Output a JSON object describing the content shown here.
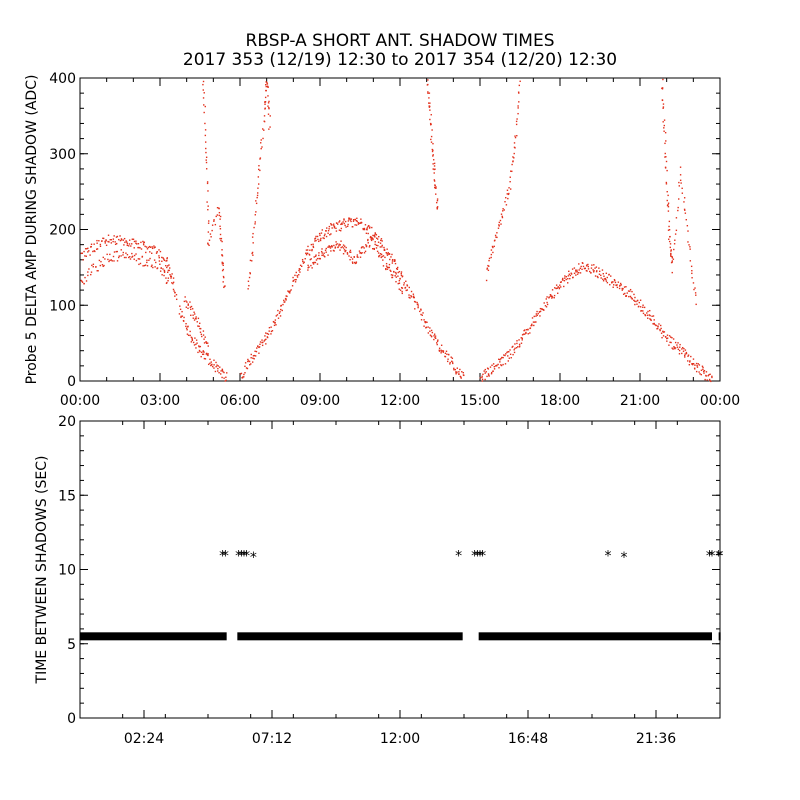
{
  "title": "RBSP-A SHORT ANT. SHADOW TIMES",
  "subtitle": "2017 353 (12/19) 12:30 to 2017 354 (12/20) 12:30",
  "colors": {
    "amp_points": "#e2301c",
    "interval_points": "#000000",
    "axes": "#000000"
  },
  "chart_data": [
    {
      "type": "scatter",
      "ylabel": "Probe 5 DELTA AMP DURING SHADOW (ADC)",
      "xlabel": "",
      "xlim": [
        0,
        24
      ],
      "ylim": [
        0,
        400
      ],
      "x_ticks": [
        0,
        3,
        6,
        9,
        12,
        15,
        18,
        21,
        24
      ],
      "x_tick_labels": [
        "00:00",
        "03:00",
        "06:00",
        "09:00",
        "12:00",
        "15:00",
        "18:00",
        "21:00",
        "00:00"
      ],
      "y_ticks": [
        0,
        100,
        200,
        300,
        400
      ],
      "y_tick_labels": [
        "0",
        "100",
        "200",
        "300",
        "400"
      ],
      "series": [
        {
          "x": [
            0.0,
            0.4,
            0.8,
            1.2,
            1.6,
            2.0,
            2.4,
            2.8,
            3.2,
            3.4,
            3.6
          ],
          "y": [
            165,
            175,
            185,
            188,
            186,
            182,
            178,
            172,
            160,
            140,
            110
          ]
        },
        {
          "x": [
            0.0,
            0.5,
            1.0,
            1.5,
            2.0,
            2.5,
            3.0,
            3.3
          ],
          "y": [
            130,
            150,
            162,
            168,
            164,
            158,
            152,
            130
          ]
        },
        {
          "x": [
            3.7,
            4.0,
            4.3,
            4.6,
            4.9,
            5.2,
            5.5
          ],
          "y": [
            95,
            70,
            50,
            35,
            25,
            15,
            5
          ]
        },
        {
          "x": [
            3.9,
            4.2,
            4.5,
            4.8
          ],
          "y": [
            110,
            90,
            70,
            45
          ]
        },
        {
          "x": [
            6.0,
            6.3,
            6.6,
            6.9,
            7.2,
            7.5,
            7.8,
            8.1,
            8.4,
            8.7,
            9.0,
            9.3,
            9.6,
            9.9,
            10.2,
            10.5,
            10.8,
            11.1,
            11.4,
            11.7,
            12.0,
            12.3,
            12.6,
            12.9,
            13.2,
            13.5,
            13.8,
            14.1,
            14.4
          ],
          "y": [
            5,
            25,
            40,
            55,
            75,
            95,
            115,
            140,
            165,
            180,
            192,
            200,
            205,
            208,
            210,
            208,
            200,
            190,
            175,
            160,
            140,
            120,
            100,
            80,
            60,
            45,
            30,
            15,
            3
          ]
        },
        {
          "x": [
            8.5,
            8.8,
            9.1,
            9.4,
            9.7,
            10.0,
            10.3,
            10.6,
            10.9,
            11.2,
            11.5,
            11.8,
            12.1
          ],
          "y": [
            150,
            160,
            170,
            175,
            180,
            170,
            160,
            175,
            185,
            170,
            150,
            140,
            120
          ]
        },
        {
          "x": [
            15.0,
            15.3,
            15.6,
            15.9,
            16.2,
            16.5,
            16.8,
            17.1,
            17.4,
            17.7,
            18.0,
            18.3,
            18.6,
            18.9,
            19.2,
            19.5,
            19.8,
            20.1,
            20.4,
            20.7,
            21.0,
            21.3,
            21.6,
            21.9,
            22.2,
            22.5,
            22.8,
            23.1,
            23.4,
            23.7
          ],
          "y": [
            5,
            12,
            20,
            30,
            40,
            55,
            70,
            85,
            100,
            115,
            128,
            140,
            148,
            152,
            148,
            142,
            135,
            128,
            120,
            112,
            100,
            88,
            75,
            60,
            50,
            42,
            30,
            20,
            10,
            3
          ]
        },
        {
          "x": [
            4.6,
            4.7,
            4.8,
            5.2,
            5.3,
            5.4
          ],
          "y": [
            400,
            300,
            180,
            230,
            170,
            120
          ]
        },
        {
          "x": [
            6.3,
            6.5,
            6.7,
            6.9,
            7.0,
            7.1
          ],
          "y": [
            120,
            200,
            280,
            360,
            400,
            330
          ]
        },
        {
          "x": [
            13.0,
            13.1,
            13.2,
            13.3,
            13.4
          ],
          "y": [
            400,
            360,
            300,
            260,
            220
          ]
        },
        {
          "x": [
            15.2,
            15.5,
            15.8,
            16.1,
            16.3,
            16.5
          ],
          "y": [
            140,
            180,
            220,
            260,
            320,
            400
          ]
        },
        {
          "x": [
            21.8,
            21.9,
            22.0,
            22.1,
            22.2,
            22.5,
            22.8,
            23.1
          ],
          "y": [
            400,
            330,
            250,
            180,
            150,
            280,
            180,
            100
          ]
        }
      ]
    },
    {
      "type": "scatter",
      "ylabel": "TIME BETWEEN SHADOWS (SEC)",
      "xlabel": "",
      "xlim": [
        0,
        24
      ],
      "ylim": [
        0,
        20
      ],
      "x_ticks": [
        2.4,
        7.2,
        12.0,
        16.8,
        21.6
      ],
      "x_tick_labels": [
        "02:24",
        "07:12",
        "12:00",
        "16:48",
        "21:36"
      ],
      "y_ticks": [
        0,
        5,
        10,
        15,
        20
      ],
      "y_tick_labels": [
        "0",
        "5",
        "10",
        "15",
        "20"
      ],
      "series": [
        {
          "name": "",
          "x_ranges": [
            [
              0.0,
              5.5
            ],
            [
              5.9,
              14.35
            ],
            [
              14.95,
              23.7
            ],
            [
              23.95,
              24.0
            ]
          ],
          "y": 5.5
        },
        {
          "x": [
            5.35,
            5.45,
            5.95,
            6.05,
            6.15,
            6.25,
            6.5,
            14.2,
            14.8,
            14.9,
            15.0,
            15.1,
            19.8,
            20.4,
            23.6,
            23.7,
            23.95,
            24.0
          ],
          "y": [
            11,
            11,
            11,
            11,
            11,
            11,
            10.9,
            11,
            11,
            11,
            11,
            11,
            11,
            10.9,
            11,
            11,
            11,
            11
          ]
        }
      ]
    }
  ]
}
